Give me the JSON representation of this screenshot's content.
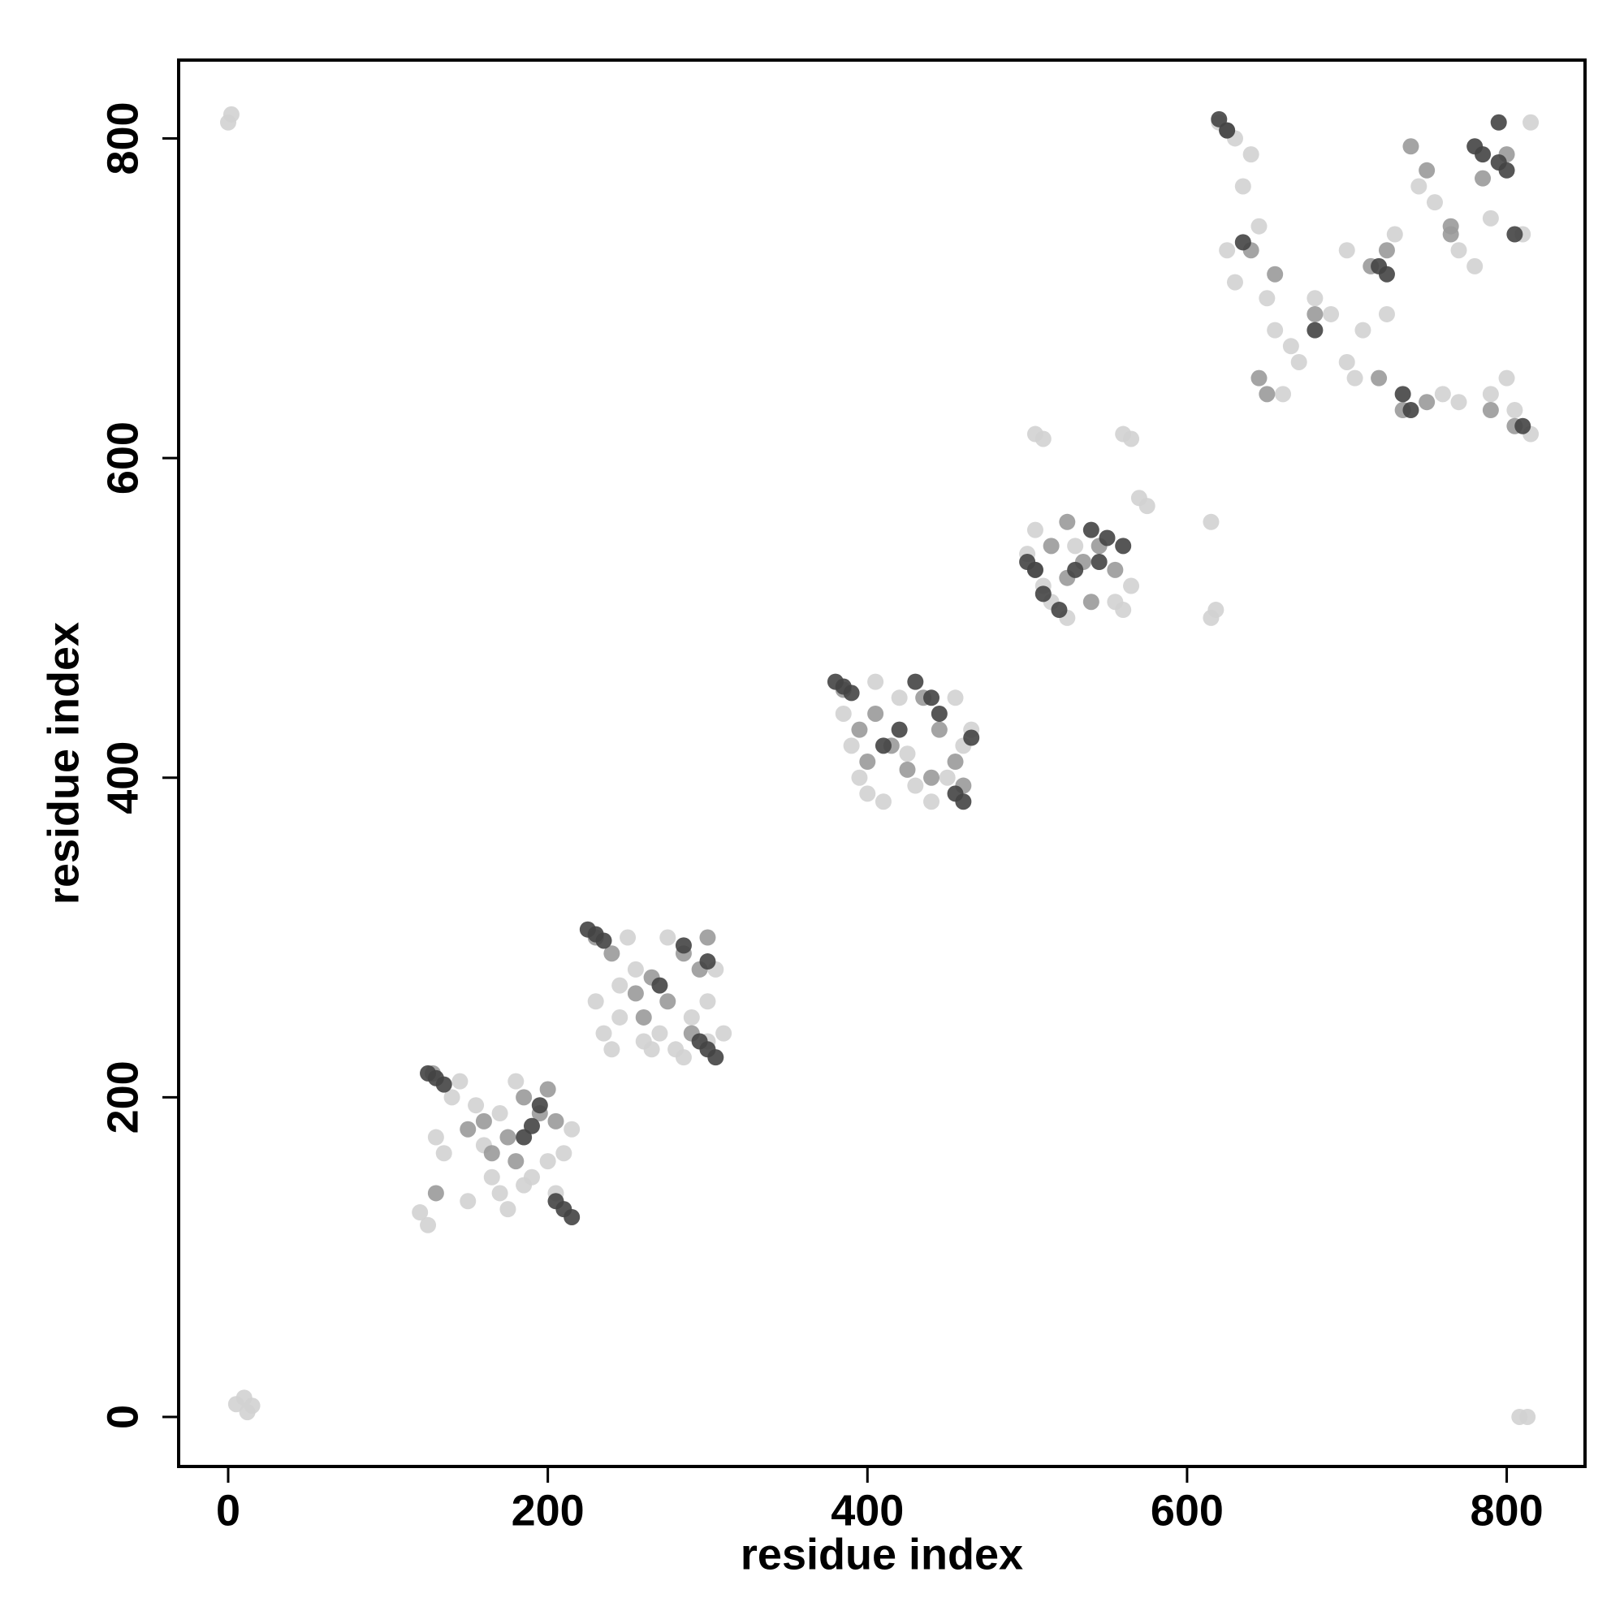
{
  "chart_data": {
    "type": "scatter",
    "x_label": "residue index",
    "y_label": "residue index",
    "xlim": [
      -31,
      849
    ],
    "ylim": [
      -31,
      849
    ],
    "xticks": [
      0,
      200,
      400,
      600,
      800
    ],
    "yticks": [
      0,
      200,
      400,
      600,
      800
    ],
    "series": [
      {
        "color": "#d2d2d2",
        "x": [
          0,
          2,
          5,
          10,
          12,
          15,
          808,
          813,
          120,
          125,
          140,
          145,
          155,
          160,
          165,
          170,
          175,
          180,
          190,
          200,
          210,
          215,
          135,
          150,
          185,
          205,
          130,
          170,
          230,
          235,
          240,
          245,
          250,
          255,
          260,
          265,
          270,
          280,
          290,
          300,
          305,
          310,
          245,
          275,
          285,
          300,
          385,
          390,
          395,
          400,
          410,
          420,
          430,
          440,
          450,
          460,
          465,
          405,
          425,
          455,
          500,
          505,
          510,
          515,
          525,
          530,
          555,
          560,
          565,
          570,
          575,
          505,
          510,
          560,
          565,
          615,
          618,
          615,
          620,
          630,
          640,
          635,
          645,
          625,
          630,
          650,
          655,
          665,
          670,
          680,
          690,
          700,
          705,
          710,
          725,
          730,
          745,
          755,
          770,
          780,
          790,
          760,
          770,
          790,
          800,
          805,
          815,
          810,
          815,
          700,
          660
        ],
        "values": [
          810,
          815,
          8,
          12,
          3,
          7,
          0,
          0,
          128,
          120,
          200,
          210,
          195,
          170,
          150,
          140,
          130,
          210,
          150,
          160,
          165,
          180,
          165,
          135,
          145,
          140,
          175,
          190,
          260,
          240,
          230,
          250,
          300,
          280,
          235,
          230,
          240,
          230,
          250,
          260,
          280,
          240,
          270,
          300,
          225,
          235,
          440,
          420,
          400,
          390,
          385,
          450,
          395,
          385,
          400,
          420,
          430,
          460,
          415,
          450,
          540,
          555,
          520,
          510,
          500,
          545,
          510,
          505,
          520,
          575,
          570,
          615,
          612,
          615,
          612,
          560,
          505,
          500,
          810,
          800,
          790,
          770,
          745,
          730,
          710,
          700,
          680,
          670,
          660,
          700,
          690,
          660,
          650,
          680,
          690,
          740,
          770,
          760,
          730,
          720,
          750,
          640,
          635,
          640,
          650,
          630,
          615,
          740,
          810,
          730,
          640
        ]
      },
      {
        "color": "#9a9a9a",
        "x": [
          128,
          150,
          165,
          175,
          185,
          195,
          200,
          130,
          180,
          205,
          160,
          230,
          255,
          265,
          275,
          285,
          295,
          300,
          240,
          260,
          290,
          385,
          395,
          405,
          415,
          425,
          435,
          445,
          455,
          460,
          400,
          440,
          505,
          515,
          525,
          535,
          545,
          555,
          525,
          540,
          625,
          640,
          655,
          680,
          715,
          725,
          740,
          750,
          765,
          785,
          800,
          645,
          650,
          720,
          735,
          750,
          790,
          805,
          765
        ],
        "values": [
          215,
          180,
          165,
          175,
          200,
          190,
          205,
          140,
          160,
          185,
          185,
          300,
          265,
          275,
          260,
          290,
          280,
          300,
          290,
          250,
          240,
          455,
          430,
          440,
          420,
          405,
          450,
          430,
          410,
          395,
          410,
          400,
          530,
          545,
          525,
          535,
          545,
          530,
          560,
          510,
          805,
          730,
          715,
          690,
          720,
          730,
          795,
          780,
          745,
          775,
          790,
          650,
          640,
          650,
          630,
          635,
          630,
          620,
          740
        ]
      },
      {
        "color": "#444444",
        "x": [
          125,
          130,
          135,
          205,
          210,
          215,
          190,
          195,
          185,
          225,
          230,
          235,
          295,
          300,
          305,
          285,
          270,
          300,
          380,
          385,
          390,
          455,
          460,
          465,
          430,
          440,
          420,
          410,
          445,
          500,
          505,
          510,
          520,
          530,
          540,
          550,
          545,
          560,
          620,
          625,
          635,
          680,
          720,
          725,
          735,
          740,
          780,
          785,
          795,
          800,
          805,
          810,
          795
        ],
        "values": [
          215,
          212,
          208,
          135,
          130,
          125,
          182,
          195,
          175,
          305,
          302,
          298,
          235,
          230,
          225,
          295,
          270,
          285,
          460,
          457,
          453,
          390,
          385,
          425,
          460,
          450,
          430,
          420,
          440,
          535,
          530,
          515,
          505,
          530,
          555,
          550,
          535,
          545,
          812,
          805,
          735,
          680,
          720,
          715,
          640,
          630,
          795,
          790,
          785,
          780,
          740,
          620,
          810
        ]
      }
    ]
  }
}
